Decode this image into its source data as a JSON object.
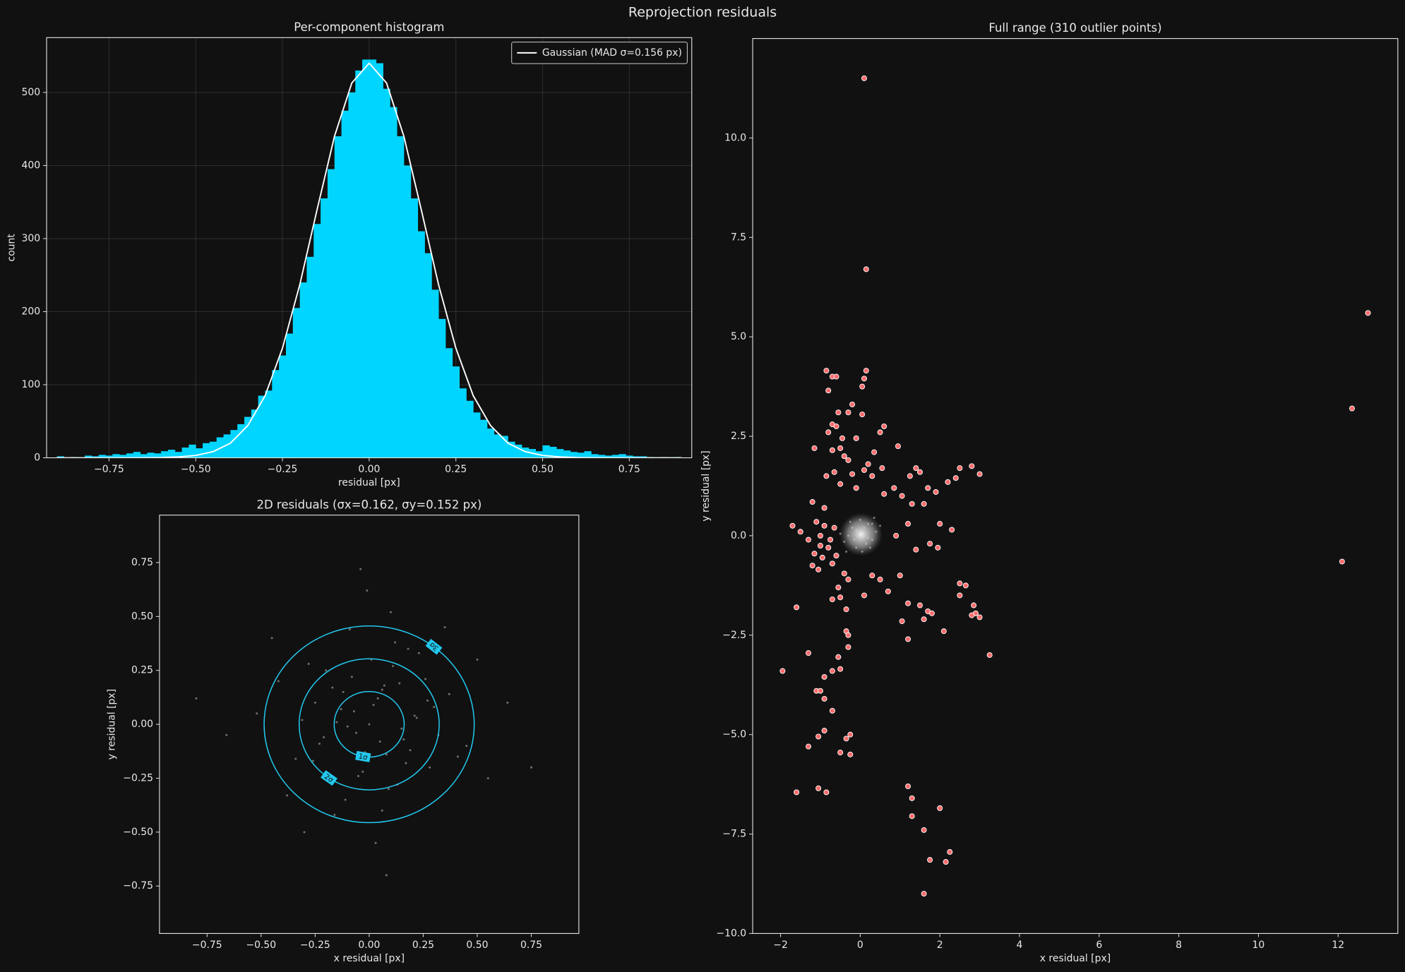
{
  "title": "Reprojection residuals",
  "chart_data": [
    {
      "type": "histogram",
      "title": "Per-component histogram",
      "xlabel": "residual [px]",
      "ylabel": "count",
      "bins": [
        -0.9,
        -0.88,
        -0.86,
        -0.84,
        -0.82,
        -0.8,
        -0.78,
        -0.76,
        -0.74,
        -0.72,
        -0.7,
        -0.68,
        -0.66,
        -0.64,
        -0.62,
        -0.6,
        -0.58,
        -0.56,
        -0.54,
        -0.52,
        -0.5,
        -0.48,
        -0.46,
        -0.44,
        -0.42,
        -0.4,
        -0.38,
        -0.36,
        -0.34,
        -0.32,
        -0.3,
        -0.28,
        -0.26,
        -0.24,
        -0.22,
        -0.2,
        -0.18,
        -0.16,
        -0.14,
        -0.12,
        -0.1,
        -0.08,
        -0.06,
        -0.04,
        -0.02,
        0,
        0.02,
        0.04,
        0.06,
        0.08,
        0.1,
        0.12,
        0.14,
        0.16,
        0.18,
        0.2,
        0.22,
        0.24,
        0.26,
        0.28,
        0.3,
        0.32,
        0.34,
        0.36,
        0.38,
        0.4,
        0.42,
        0.44,
        0.46,
        0.48,
        0.5,
        0.52,
        0.54,
        0.56,
        0.58,
        0.6,
        0.62,
        0.64,
        0.66,
        0.68,
        0.7,
        0.72,
        0.74,
        0.76,
        0.78,
        0.8,
        0.82,
        0.84,
        0.86,
        0.88,
        0.9
      ],
      "values": [
        2,
        0,
        1,
        0,
        3,
        2,
        4,
        3,
        5,
        4,
        6,
        8,
        5,
        7,
        6,
        9,
        11,
        8,
        14,
        18,
        13,
        20,
        22,
        28,
        32,
        38,
        46,
        56,
        66,
        85,
        92,
        120,
        140,
        170,
        205,
        240,
        275,
        320,
        355,
        395,
        440,
        475,
        500,
        530,
        545,
        545,
        540,
        505,
        480,
        440,
        400,
        355,
        310,
        280,
        230,
        190,
        150,
        125,
        95,
        78,
        62,
        52,
        40,
        32,
        30,
        22,
        18,
        14,
        12,
        9,
        17,
        15,
        12,
        10,
        8,
        7,
        9,
        5,
        4,
        3,
        4,
        5,
        3,
        2,
        2,
        1,
        0,
        1,
        0,
        1
      ],
      "color": "#00d5ff",
      "series": [
        {
          "name": "Gaussian (MAD σ=0.156 px)",
          "type": "line",
          "color": "#ffffff",
          "x": [
            -0.9,
            -0.85,
            -0.8,
            -0.75,
            -0.7,
            -0.65,
            -0.6,
            -0.55,
            -0.5,
            -0.45,
            -0.4,
            -0.35,
            -0.3,
            -0.25,
            -0.2,
            -0.15,
            -0.1,
            -0.05,
            0,
            0.05,
            0.1,
            0.15,
            0.2,
            0.25,
            0.3,
            0.35,
            0.4,
            0.45,
            0.5,
            0.55,
            0.6,
            0.65,
            0.7,
            0.75,
            0.8,
            0.85,
            0.9
          ],
          "values": [
            0,
            0,
            0,
            0,
            0,
            0.1,
            0.3,
            1.1,
            3.2,
            8.4,
            20,
            44,
            85,
            150,
            237,
            340,
            440,
            513,
            540,
            513,
            440,
            340,
            237,
            150,
            85,
            44,
            20,
            8.4,
            3.2,
            1.1,
            0.3,
            0.1,
            0,
            0,
            0,
            0,
            0
          ]
        }
      ],
      "legend": "upper right",
      "grid": true,
      "xlim": [
        -0.93,
        0.93
      ],
      "ylim": [
        0,
        575
      ],
      "xticks": [
        {
          "value": -0.75,
          "label": "−0.75"
        },
        {
          "value": -0.5,
          "label": "−0.50"
        },
        {
          "value": -0.25,
          "label": "−0.25"
        },
        {
          "value": 0,
          "label": "0.00"
        },
        0.25,
        {
          "value": 0.5,
          "label": "0.50"
        },
        0.75
      ],
      "yticks": [
        0,
        100,
        200,
        300,
        400,
        500
      ]
    },
    {
      "type": "scatter",
      "title": "2D residuals (σx=0.162, σy=0.152 px)",
      "xlabel": "x residual [px]",
      "ylabel": "y residual [px]",
      "series": [
        {
          "color": "#bbbbbb",
          "x": [
            0.05,
            -0.12,
            0.21,
            -0.03,
            0.14,
            -0.25,
            0.08,
            0.32,
            -0.18,
            0.01,
            -0.07,
            0.17,
            -0.31,
            0.26,
            -0.11,
            0.04,
            0.45,
            -0.42,
            0.12,
            -0.06,
            0.09,
            -0.2,
            0.28,
            -0.15,
            0.02,
            0.19,
            -0.34,
            0.37,
            -0.09,
            0.06,
            -0.52,
            0.55,
            0.11,
            -0.23,
            0.15,
            -0.02,
            0.23,
            -0.28,
            0.07,
            -0.16,
            0.64,
            -0.66,
            0.03,
            0.1,
            -0.13,
            0.3,
            -0.05,
            0.18,
            -0.38,
            0.41,
            0.0,
            -0.21,
            0.13,
            -0.08,
            0.27,
            -0.45,
            0.5,
            -0.01,
            0.16,
            -0.26,
            0.75,
            -0.8,
            0.08,
            -0.04,
            0.22,
            -0.17,
            0.35,
            -0.3,
            0.06,
            -0.1
          ],
          "values": [
            -0.08,
            0.15,
            0.04,
            -0.22,
            0.19,
            0.1,
            -0.14,
            -0.05,
            -0.27,
            0.3,
            0.06,
            -0.18,
            0.02,
            0.21,
            -0.35,
            0.12,
            -0.1,
            0.2,
            0.38,
            -0.04,
            -0.3,
            0.25,
            -0.2,
            0.01,
            0.09,
            -0.12,
            -0.16,
            0.14,
            0.44,
            -0.4,
            0.05,
            -0.25,
            0.27,
            -0.09,
            -0.02,
            -0.13,
            0.33,
            0.28,
            0.18,
            -0.42,
            0.1,
            -0.05,
            -0.55,
            0.52,
            0.07,
            0.08,
            -0.24,
            0.35,
            -0.33,
            -0.15,
            0.0,
            -0.06,
            -0.28,
            0.22,
            0.11,
            0.4,
            0.3,
            0.62,
            -0.07,
            -0.17,
            -0.2,
            0.12,
            -0.7,
            0.72,
            0.03,
            0.17,
            0.45,
            -0.5,
            0.16,
            -0.01
          ]
        }
      ],
      "center": [
        0,
        0
      ],
      "contour_color": "#22c8ee",
      "contours": [
        {
          "label": "1σ",
          "rx": 0.162,
          "ry": 0.152
        },
        {
          "label": "2σ",
          "rx": 0.324,
          "ry": 0.304
        },
        {
          "label": "3σ",
          "rx": 0.486,
          "ry": 0.456
        }
      ],
      "xlim": [
        -0.97,
        0.97
      ],
      "ylim": [
        -0.97,
        0.97
      ],
      "xticks": [
        {
          "value": -0.75,
          "label": "−0.75"
        },
        {
          "value": -0.5,
          "label": "−0.50"
        },
        {
          "value": -0.25,
          "label": "−0.25"
        },
        {
          "value": 0,
          "label": "0.00"
        },
        0.25,
        {
          "value": 0.5,
          "label": "0.50"
        },
        0.75
      ],
      "yticks": [
        {
          "value": -0.75,
          "label": "−0.75"
        },
        {
          "value": -0.5,
          "label": "−0.50"
        },
        {
          "value": -0.25,
          "label": "−0.25"
        },
        {
          "value": 0,
          "label": "0.00"
        },
        0.25,
        {
          "value": 0.5,
          "label": "0.50"
        },
        0.75
      ]
    },
    {
      "type": "scatter",
      "title": "Full range (310 outlier points)",
      "xlabel": "x residual [px]",
      "ylabel": "y residual [px]",
      "series": [
        {
          "color": "#cccccc",
          "x": [
            0.1,
            -0.2,
            0.3,
            -0.1,
            0.0,
            0.2,
            -0.3,
            0.15,
            -0.05,
            0.4,
            -0.4,
            0.05,
            0.25,
            -0.25,
            0.1,
            -0.15,
            0.5,
            -0.5,
            0.35,
            -0.35,
            0.0,
            0.2,
            -0.1,
            0.3
          ],
          "values": [
            0.0,
            0.2,
            -0.1,
            -0.3,
            0.4,
            0.3,
            0.0,
            -0.2,
            0.1,
            0.1,
            -0.15,
            -0.4,
            -0.3,
            0.35,
            0.2,
            -0.1,
            0.25,
            0.05,
            0.45,
            -0.4,
            -0.05,
            -0.05,
            0.15,
            0.3
          ]
        },
        {
          "color": "#ff6b6b",
          "edgecolor": "#ffffff",
          "x": [
            0.1,
            0.15,
            12.75,
            12.35,
            12.1,
            -0.85,
            -0.7,
            -0.6,
            0.15,
            0.1,
            -0.8,
            0.05,
            -0.55,
            -0.3,
            -0.2,
            0.05,
            0.6,
            0.5,
            -0.7,
            -0.6,
            -0.8,
            -0.45,
            -0.1,
            0.95,
            -1.15,
            -0.7,
            -0.5,
            0.35,
            -0.4,
            -0.3,
            0.2,
            0.55,
            0.1,
            -0.65,
            -0.2,
            -0.85,
            0.3,
            1.4,
            1.5,
            1.25,
            2.5,
            2.8,
            3.0,
            2.4,
            2.2,
            1.7,
            1.9,
            0.85,
            1.05,
            -0.5,
            -0.1,
            0.6,
            -1.2,
            -0.9,
            1.3,
            1.6,
            2.0,
            2.3,
            1.75,
            1.95,
            1.4,
            0.9,
            1.2,
            -1.7,
            -1.5,
            -1.3,
            -1.1,
            -1.15,
            -0.95,
            -1.2,
            -1.05,
            -0.7,
            -0.4,
            -0.55,
            -0.3,
            0.1,
            0.7,
            0.3,
            0.5,
            1.0,
            1.2,
            1.5,
            1.7,
            1.8,
            1.05,
            1.6,
            1.2,
            2.1,
            2.5,
            2.65,
            2.5,
            2.85,
            2.9,
            3.0,
            2.8,
            3.25,
            -0.5,
            -0.35,
            -0.7,
            -0.35,
            -0.3,
            -0.3,
            -0.55,
            -0.7,
            -0.5,
            -0.9,
            -1.1,
            -1.0,
            -0.9,
            -0.7,
            -1.3,
            -1.95,
            -1.6,
            -1.05,
            -0.9,
            -1.3,
            -0.35,
            -0.25,
            -0.5,
            -0.25,
            -1.05,
            -0.85,
            -1.6,
            1.2,
            1.3,
            2.0,
            1.3,
            1.6,
            1.75,
            2.15,
            2.25,
            1.6,
            -1.0,
            -0.8,
            -0.65,
            -0.9,
            -1.0,
            -0.6,
            -0.75
          ],
          "values": [
            11.5,
            6.7,
            5.6,
            3.2,
            -0.65,
            4.15,
            4.0,
            4.0,
            4.15,
            3.95,
            3.65,
            3.75,
            3.1,
            3.1,
            3.3,
            3.05,
            2.75,
            2.6,
            2.8,
            2.75,
            2.6,
            2.45,
            2.45,
            2.25,
            2.2,
            2.15,
            2.2,
            2.1,
            2.0,
            1.9,
            1.8,
            1.7,
            1.65,
            1.6,
            1.55,
            1.5,
            1.5,
            1.7,
            1.6,
            1.5,
            1.7,
            1.75,
            1.55,
            1.45,
            1.35,
            1.2,
            1.1,
            1.2,
            1.0,
            1.3,
            1.2,
            1.05,
            0.85,
            0.7,
            0.8,
            0.8,
            0.3,
            0.15,
            -0.2,
            -0.3,
            -0.35,
            0.0,
            0.3,
            0.25,
            0.1,
            -0.1,
            0.35,
            -0.45,
            -0.55,
            -0.75,
            -0.85,
            -0.7,
            -0.95,
            -1.3,
            -1.1,
            -1.5,
            -1.4,
            -1.0,
            -1.1,
            -1.0,
            -1.7,
            -1.75,
            -1.9,
            -1.95,
            -2.15,
            -2.1,
            -2.6,
            -2.4,
            -1.2,
            -1.25,
            -1.5,
            -1.75,
            -1.95,
            -2.05,
            -2.0,
            -3.0,
            -1.55,
            -1.85,
            -1.6,
            -2.4,
            -2.5,
            -2.8,
            -3.05,
            -3.4,
            -3.35,
            -3.55,
            -3.9,
            -3.9,
            -4.1,
            -4.4,
            -2.95,
            -3.4,
            -1.8,
            -5.05,
            -4.9,
            -5.3,
            -5.1,
            -5.0,
            -5.45,
            -5.5,
            -6.35,
            -6.45,
            -6.45,
            -6.3,
            -6.6,
            -6.85,
            -7.05,
            -7.4,
            -8.15,
            -8.2,
            -7.95,
            -9.0,
            0.0,
            -0.3,
            0.2,
            0.25,
            -0.25,
            -0.5,
            -0.1
          ]
        }
      ],
      "xlim": [
        -2.7,
        13.5
      ],
      "ylim": [
        -10,
        12.5
      ],
      "xticks": [
        {
          "value": -2,
          "label": "−2"
        },
        0,
        2,
        4,
        6,
        8,
        10,
        12
      ],
      "yticks": [
        {
          "value": -10,
          "label": "−10.0"
        },
        {
          "value": -7.5,
          "label": "−7.5"
        },
        {
          "value": -5,
          "label": "−5.0"
        },
        {
          "value": -2.5,
          "label": "−2.5"
        },
        {
          "value": 0,
          "label": "0.0"
        },
        2.5,
        {
          "value": 5,
          "label": "5.0"
        },
        7.5,
        {
          "value": 10,
          "label": "10.0"
        }
      ]
    }
  ]
}
